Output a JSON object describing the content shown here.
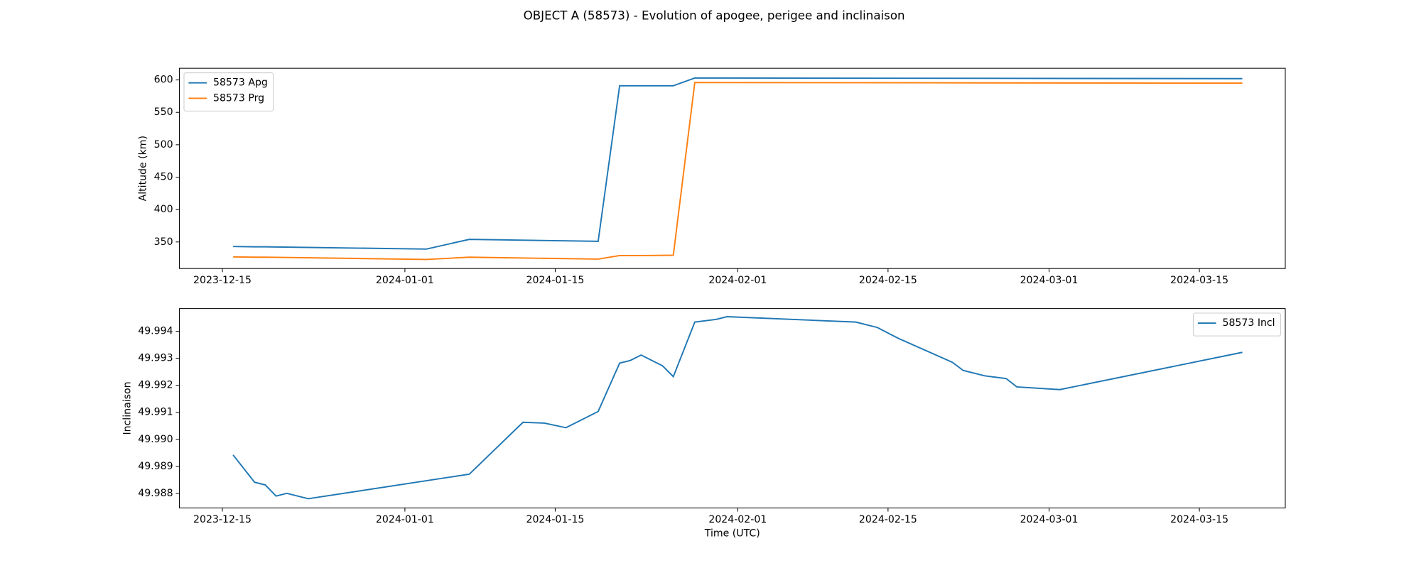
{
  "title": "OBJECT A (58573) - Evolution of apogee, perigee and inclinaison",
  "chart_data": [
    {
      "type": "line",
      "ylabel": "Altitude (km)",
      "x": [
        "2023-12-16",
        "2023-12-18",
        "2023-12-19",
        "2024-01-03",
        "2024-01-07",
        "2024-01-19",
        "2024-01-21",
        "2024-01-23",
        "2024-01-26",
        "2024-01-28",
        "2024-03-19"
      ],
      "series": [
        {
          "name": "58573 Apg",
          "color": "#1f77b4",
          "values": [
            343,
            342.5,
            342.5,
            339,
            354,
            351,
            591,
            591,
            591,
            603,
            602
          ]
        },
        {
          "name": "58573 Prg",
          "color": "#ff7f0e",
          "values": [
            327,
            326.5,
            326.5,
            323,
            326.5,
            323.5,
            329,
            329,
            329.5,
            596,
            595
          ]
        }
      ],
      "xlim": [
        "2023-12-11",
        "2024-03-23"
      ],
      "xticks": [
        "2023-12-15",
        "2024-01-01",
        "2024-01-15",
        "2024-02-01",
        "2024-02-15",
        "2024-03-01",
        "2024-03-15"
      ],
      "ylim": [
        309,
        618
      ],
      "yticks": [
        350,
        400,
        450,
        500,
        550,
        600
      ],
      "legend": "upper left"
    },
    {
      "type": "line",
      "ylabel": "Inclinaison",
      "xlabel": "Time (UTC)",
      "x": [
        "2023-12-16",
        "2023-12-18",
        "2023-12-19",
        "2023-12-20",
        "2023-12-21",
        "2023-12-23",
        "2024-01-07",
        "2024-01-12",
        "2024-01-14",
        "2024-01-16",
        "2024-01-19",
        "2024-01-21",
        "2024-01-22",
        "2024-01-23",
        "2024-01-25",
        "2024-01-26",
        "2024-01-28",
        "2024-01-30",
        "2024-01-31",
        "2024-02-12",
        "2024-02-14",
        "2024-02-16",
        "2024-02-21",
        "2024-02-22",
        "2024-02-24",
        "2024-02-26",
        "2024-02-27",
        "2024-03-02",
        "2024-03-19"
      ],
      "series": [
        {
          "name": "58573 Incl",
          "color": "#1f77b4",
          "values": [
            49.98942,
            49.98841,
            49.98831,
            49.9879,
            49.988,
            49.9878,
            49.98871,
            49.99063,
            49.9906,
            49.99043,
            49.99103,
            49.99282,
            49.99292,
            49.99312,
            49.99272,
            49.99232,
            49.99434,
            49.99444,
            49.99454,
            49.99434,
            49.99414,
            49.99373,
            49.99285,
            49.99255,
            49.99235,
            49.99225,
            49.99194,
            49.99184,
            49.99322
          ]
        }
      ],
      "xlim": [
        "2023-12-11",
        "2024-03-23"
      ],
      "xticks": [
        "2023-12-15",
        "2024-01-01",
        "2024-01-15",
        "2024-02-01",
        "2024-02-15",
        "2024-03-01",
        "2024-03-15"
      ],
      "ylim": [
        49.98746,
        49.99484
      ],
      "yticks": [
        49.988,
        49.989,
        {
          "value": 49.99,
          "label": "49.990"
        },
        49.991,
        49.992,
        49.993,
        49.994
      ],
      "legend": "upper right"
    }
  ]
}
